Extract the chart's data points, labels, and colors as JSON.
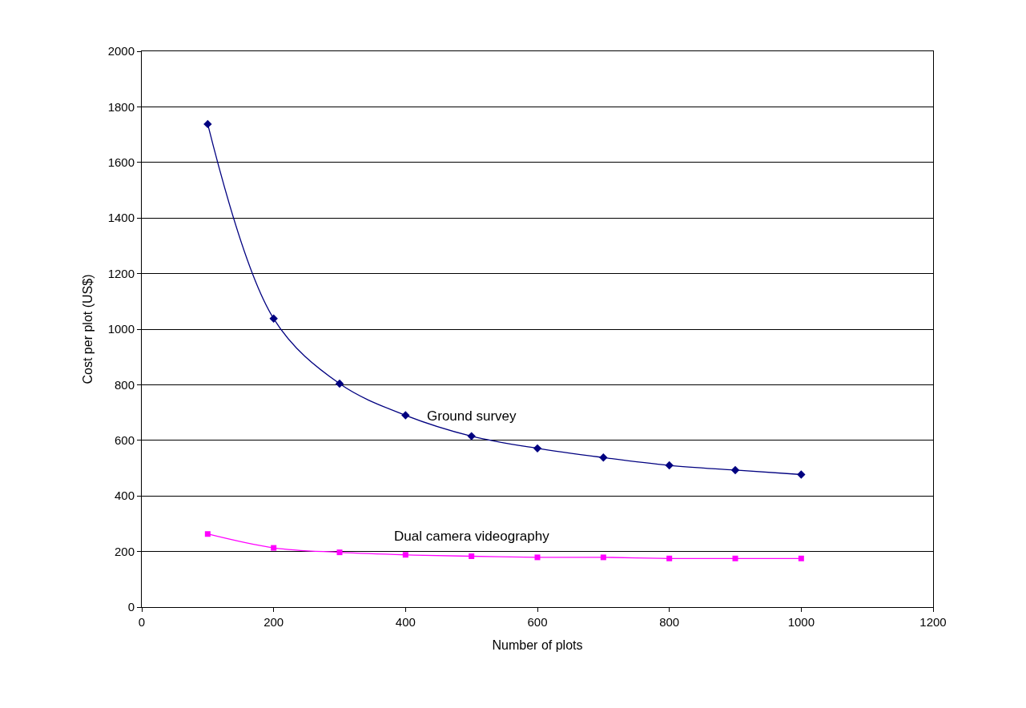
{
  "chart_data": {
    "type": "line",
    "xlabel": "Number of plots",
    "ylabel": "Cost per plot (US$)",
    "x": [
      100,
      200,
      300,
      400,
      500,
      600,
      700,
      800,
      900,
      1000
    ],
    "series": [
      {
        "name": "Ground survey",
        "color": "#000080",
        "marker": "diamond",
        "values": [
          1738,
          1038,
          804,
          690,
          615,
          571,
          538,
          510,
          493,
          477
        ]
      },
      {
        "name": "Dual camera videography",
        "color": "#ff00ff",
        "marker": "square",
        "values": [
          263,
          213,
          197,
          188,
          183,
          179,
          179,
          175,
          175,
          175
        ]
      }
    ],
    "xlim": [
      0,
      1200
    ],
    "xticks": [
      0,
      200,
      400,
      600,
      800,
      1000,
      1200
    ],
    "ylim": [
      0,
      2000
    ],
    "yticks": [
      0,
      200,
      400,
      600,
      800,
      1000,
      1200,
      1400,
      1600,
      1800,
      2000
    ],
    "grid": "y",
    "legend": false
  }
}
